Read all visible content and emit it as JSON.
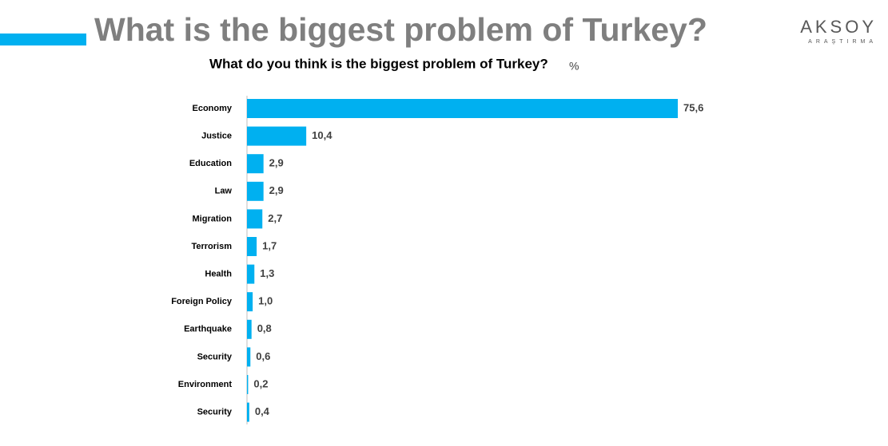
{
  "chart_data": {
    "type": "hbar",
    "title": "What is the biggest problem of Turkey?",
    "subtitle": "What do you think is the biggest problem of Turkey?",
    "unit": "%",
    "categories": [
      "Economy",
      "Justice",
      "Education",
      "Law",
      "Migration",
      "Terrorism",
      "Health",
      "Foreign Policy",
      "Earthquake",
      "Security",
      "Environment",
      "Security"
    ],
    "values": [
      75.6,
      10.4,
      2.9,
      2.9,
      2.7,
      1.7,
      1.3,
      1.0,
      0.8,
      0.6,
      0.2,
      0.4
    ],
    "value_labels": [
      "75,6",
      "10,4",
      "2,9",
      "2,9",
      "2,7",
      "1,7",
      "1,3",
      "1,0",
      "0,8",
      "0,6",
      "0,2",
      "0,4"
    ],
    "color": "#00b0f0"
  },
  "logo": {
    "name": "AKSOY",
    "tagline": "ARAŞTIRMA"
  }
}
